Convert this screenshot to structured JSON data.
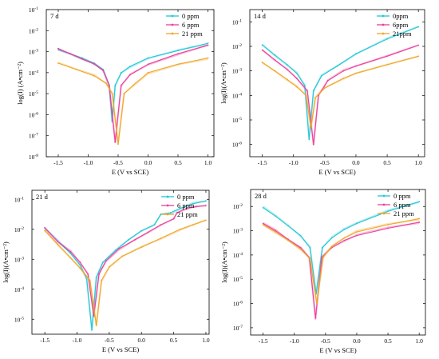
{
  "colors": {
    "0ppm": "#22c7d6",
    "6ppm": "#ec3f9a",
    "21ppm": "#f0a526",
    "axis": "#000000"
  },
  "chart_data": [
    {
      "type": "line",
      "title": "7 d",
      "xlabel": "E (V vs SCE)",
      "ylabel": "log(I) (A•cm⁻²)",
      "xlim": [
        -1.7,
        1.1
      ],
      "ylim": [
        -8,
        -1
      ],
      "y_log": true,
      "x_ticks": [
        "-1.5",
        "-1.0",
        "-0.5",
        "0.0",
        "0.5",
        "1.0"
      ],
      "x_tick_values": [
        -1.5,
        -1.0,
        -0.5,
        0.0,
        0.5,
        1.0
      ],
      "y_ticks": [
        {
          "b": "10",
          "e": "-8"
        },
        {
          "b": "10",
          "e": "-7"
        },
        {
          "b": "10",
          "e": "-6"
        },
        {
          "b": "10",
          "e": "-5"
        },
        {
          "b": "10",
          "e": "-4"
        },
        {
          "b": "10",
          "e": "-3"
        },
        {
          "b": "10",
          "e": "-2"
        },
        {
          "b": "10",
          "e": "-1"
        }
      ],
      "y_tick_values": [
        -8,
        -7,
        -6,
        -5,
        -4,
        -3,
        -2,
        -1
      ],
      "legend_position": "top-right",
      "series": [
        {
          "name": "0 ppm",
          "color_key": "0ppm",
          "ecorr": -0.6,
          "floor": -6.3,
          "x": [
            -1.5,
            -1.3,
            -1.1,
            -0.9,
            -0.75,
            -0.65,
            -0.6,
            -0.55,
            -0.45,
            -0.3,
            0.0,
            0.5,
            1.0
          ],
          "y": [
            -2.9,
            -3.1,
            -3.3,
            -3.55,
            -3.85,
            -4.6,
            -6.3,
            -4.6,
            -4.0,
            -3.7,
            -3.3,
            -2.95,
            -2.6
          ]
        },
        {
          "name": "6 ppm",
          "color_key": "6ppm",
          "ecorr": -0.55,
          "floor": -7.3,
          "x": [
            -1.5,
            -1.3,
            -1.1,
            -0.9,
            -0.75,
            -0.65,
            -0.55,
            -0.45,
            -0.3,
            0.0,
            0.5,
            1.0
          ],
          "y": [
            -2.85,
            -3.1,
            -3.35,
            -3.6,
            -3.9,
            -4.6,
            -7.3,
            -4.6,
            -4.1,
            -3.6,
            -3.1,
            -2.7
          ]
        },
        {
          "name": "21 ppm",
          "color_key": "21ppm",
          "ecorr": -0.5,
          "floor": -7.4,
          "x": [
            -1.5,
            -1.2,
            -0.9,
            -0.7,
            -0.6,
            -0.5,
            -0.4,
            -0.25,
            0.0,
            0.5,
            1.0
          ],
          "y": [
            -3.55,
            -3.85,
            -4.15,
            -4.5,
            -5.0,
            -7.4,
            -5.0,
            -4.6,
            -4.0,
            -3.6,
            -3.3
          ]
        }
      ]
    },
    {
      "type": "line",
      "title": "14 d",
      "xlabel": "E (V vs SCE)",
      "ylabel": "log(I)(A•cm⁻²)",
      "xlim": [
        -1.7,
        1.1
      ],
      "ylim": [
        -6.5,
        -0.5
      ],
      "y_log": true,
      "x_ticks": [
        "-1.5",
        "-1.0",
        "-0.5",
        "0.0",
        "0.5",
        "1.0"
      ],
      "x_tick_values": [
        -1.5,
        -1.0,
        -0.5,
        0.0,
        0.5,
        1.0
      ],
      "y_ticks": [
        {
          "b": "10",
          "e": "-6"
        },
        {
          "b": "10",
          "e": "-5"
        },
        {
          "b": "10",
          "e": "-4"
        },
        {
          "b": "10",
          "e": "-3"
        },
        {
          "b": "10",
          "e": "-2"
        },
        {
          "b": "10",
          "e": "-1"
        }
      ],
      "y_tick_values": [
        -6,
        -5,
        -4,
        -3,
        -2,
        -1
      ],
      "legend_position": "top-right",
      "series": [
        {
          "name": "0ppm",
          "color_key": "0ppm",
          "ecorr": -0.75,
          "floor": -5.8,
          "x": [
            -1.5,
            -1.3,
            -1.1,
            -0.95,
            -0.82,
            -0.75,
            -0.68,
            -0.55,
            -0.3,
            0.0,
            0.5,
            1.0
          ],
          "y": [
            -1.95,
            -2.35,
            -2.75,
            -3.1,
            -3.6,
            -5.8,
            -3.8,
            -3.2,
            -2.8,
            -2.3,
            -1.7,
            -1.2
          ]
        },
        {
          "name": "6ppm",
          "color_key": "6ppm",
          "ecorr": -0.68,
          "floor": -6.0,
          "x": [
            -1.5,
            -1.3,
            -1.1,
            -0.95,
            -0.78,
            -0.68,
            -0.6,
            -0.45,
            -0.2,
            0.0,
            0.5,
            1.0
          ],
          "y": [
            -2.15,
            -2.55,
            -2.95,
            -3.3,
            -3.8,
            -6.0,
            -4.0,
            -3.4,
            -3.0,
            -2.8,
            -2.4,
            -1.95
          ]
        },
        {
          "name": "21ppm",
          "color_key": "21ppm",
          "ecorr": -0.72,
          "floor": -5.3,
          "x": [
            -1.5,
            -1.3,
            -1.1,
            -0.95,
            -0.8,
            -0.72,
            -0.65,
            -0.5,
            -0.2,
            0.0,
            0.5,
            1.0
          ],
          "y": [
            -2.65,
            -3.0,
            -3.35,
            -3.65,
            -4.0,
            -5.3,
            -4.1,
            -3.7,
            -3.3,
            -3.1,
            -2.75,
            -2.4
          ]
        }
      ]
    },
    {
      "type": "line",
      "title": "21 d",
      "xlabel": "E (V vs SCE)",
      "ylabel": "log(I)(A•cm⁻²)",
      "xlim": [
        -1.7,
        1.05
      ],
      "ylim": [
        -5.5,
        -0.7
      ],
      "y_log": true,
      "x_ticks": [
        "-1.5",
        "-1.0",
        "-0.5",
        "0.0",
        "0.5",
        "1.0"
      ],
      "x_tick_values": [
        -1.5,
        -1.0,
        -0.5,
        0.0,
        0.5,
        1.0
      ],
      "y_ticks": [
        {
          "b": "10",
          "e": "-5"
        },
        {
          "b": "10",
          "e": "-4"
        },
        {
          "b": "10",
          "e": "-3"
        },
        {
          "b": "10",
          "e": "-2"
        },
        {
          "b": "10",
          "e": "-1"
        }
      ],
      "y_tick_values": [
        -5,
        -4,
        -3,
        -2,
        -1
      ],
      "legend_position": "top-right",
      "series": [
        {
          "name": "0 ppm",
          "color_key": "0ppm",
          "ecorr": -0.77,
          "floor": -5.35,
          "x": [
            -1.5,
            -1.3,
            -1.1,
            -0.95,
            -0.85,
            -0.77,
            -0.7,
            -0.6,
            -0.4,
            -0.2,
            0.0,
            0.2,
            0.3,
            0.45,
            0.6,
            0.8,
            1.0
          ],
          "y": [
            -1.95,
            -2.4,
            -2.8,
            -3.2,
            -3.65,
            -5.35,
            -3.6,
            -3.1,
            -2.7,
            -2.35,
            -2.05,
            -1.85,
            -1.5,
            -1.45,
            -1.3,
            -1.15,
            -1.05
          ]
        },
        {
          "name": "6 ppm",
          "color_key": "6ppm",
          "ecorr": -0.74,
          "floor": -4.9,
          "x": [
            -1.5,
            -1.3,
            -1.1,
            -0.95,
            -0.83,
            -0.74,
            -0.66,
            -0.55,
            -0.35,
            -0.1,
            0.1,
            0.3,
            0.5,
            0.55,
            0.7,
            0.85,
            1.0
          ],
          "y": [
            -1.95,
            -2.4,
            -2.75,
            -3.1,
            -3.5,
            -4.9,
            -3.5,
            -3.05,
            -2.65,
            -2.35,
            -2.1,
            -1.85,
            -1.65,
            -1.45,
            -1.3,
            -1.25,
            -1.2
          ]
        },
        {
          "name": "21 ppm",
          "color_key": "21ppm",
          "ecorr": -0.7,
          "floor": -5.2,
          "x": [
            -1.5,
            -1.3,
            -1.1,
            -0.95,
            -0.8,
            -0.7,
            -0.62,
            -0.5,
            -0.3,
            0.0,
            0.3,
            0.6,
            0.8,
            1.0
          ],
          "y": [
            -2.05,
            -2.5,
            -2.95,
            -3.3,
            -3.7,
            -5.2,
            -3.7,
            -3.25,
            -2.9,
            -2.6,
            -2.3,
            -2.0,
            -1.85,
            -1.7
          ]
        }
      ]
    },
    {
      "type": "line",
      "title": "28 d",
      "xlabel": "E (V vs SCE)",
      "ylabel": "log(I)(A•cm⁻²)",
      "xlim": [
        -1.7,
        1.1
      ],
      "ylim": [
        -7.3,
        -1.3
      ],
      "y_log": true,
      "x_ticks": [
        "-1.5",
        "-1.0",
        "-0.5",
        "0.0",
        "0.5",
        "1.0"
      ],
      "x_tick_values": [
        -1.5,
        -1.0,
        -0.5,
        0.0,
        0.5,
        1.0
      ],
      "y_ticks": [
        {
          "b": "10",
          "e": "-7"
        },
        {
          "b": "10",
          "e": "-6"
        },
        {
          "b": "10",
          "e": "-5"
        },
        {
          "b": "10",
          "e": "-4"
        },
        {
          "b": "10",
          "e": "-3"
        },
        {
          "b": "10",
          "e": "-2"
        }
      ],
      "y_tick_values": [
        -7,
        -6,
        -5,
        -4,
        -3,
        -2
      ],
      "legend_position": "top-right",
      "series": [
        {
          "name": "0 ppm",
          "color_key": "0ppm",
          "ecorr": -0.65,
          "floor": -5.6,
          "x": [
            -1.5,
            -1.3,
            -1.1,
            -0.9,
            -0.75,
            -0.65,
            -0.55,
            -0.4,
            -0.2,
            0.0,
            0.5,
            1.0
          ],
          "y": [
            -2.05,
            -2.4,
            -2.8,
            -3.2,
            -3.7,
            -5.6,
            -3.7,
            -3.3,
            -2.95,
            -2.7,
            -2.2,
            -1.8
          ]
        },
        {
          "name": "6 ppm",
          "color_key": "6ppm",
          "ecorr": -0.66,
          "floor": -6.6,
          "x": [
            -1.5,
            -1.3,
            -1.1,
            -0.9,
            -0.76,
            -0.66,
            -0.56,
            -0.4,
            -0.2,
            0.0,
            0.5,
            1.0
          ],
          "y": [
            -2.7,
            -3.0,
            -3.35,
            -3.7,
            -4.1,
            -6.6,
            -4.1,
            -3.7,
            -3.4,
            -3.2,
            -2.9,
            -2.65
          ]
        },
        {
          "name": "21 ppm",
          "color_key": "21ppm",
          "ecorr": -0.64,
          "floor": -6.0,
          "x": [
            -1.5,
            -1.3,
            -1.1,
            -0.9,
            -0.75,
            -0.64,
            -0.54,
            -0.4,
            -0.2,
            0.0,
            0.5,
            1.0
          ],
          "y": [
            -2.75,
            -3.05,
            -3.4,
            -3.75,
            -4.15,
            -6.0,
            -4.1,
            -3.65,
            -3.3,
            -3.05,
            -2.75,
            -2.5
          ]
        }
      ]
    }
  ]
}
